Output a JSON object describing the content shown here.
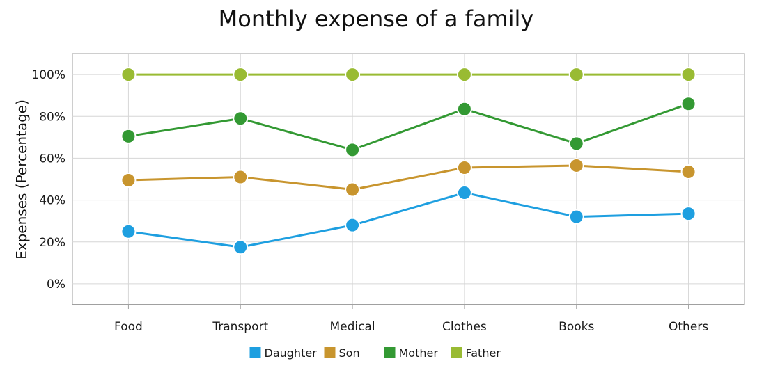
{
  "chart_data": {
    "type": "line",
    "title": "Monthly expense of a family",
    "xlabel": "",
    "ylabel": "Expenses (Percentage)",
    "categories": [
      "Food",
      "Transport",
      "Medical",
      "Clothes",
      "Books",
      "Others"
    ],
    "ylim": [
      -10,
      110
    ],
    "yticks": [
      0,
      20,
      40,
      60,
      80,
      100
    ],
    "ytick_suffix": "%",
    "grid": true,
    "legend": "bottom",
    "series": [
      {
        "name": "Daughter",
        "color": "#1e9fe0",
        "values": [
          25,
          17.5,
          28,
          43.5,
          32,
          33.5
        ]
      },
      {
        "name": "Son",
        "color": "#c8952e",
        "values": [
          49.5,
          51,
          45,
          55.5,
          56.5,
          53.5
        ]
      },
      {
        "name": "Mother",
        "color": "#339933",
        "values": [
          70.5,
          79,
          64,
          83.5,
          67,
          86
        ]
      },
      {
        "name": "Father",
        "color": "#99bb33",
        "values": [
          100,
          100,
          100,
          100,
          100,
          100
        ]
      }
    ]
  }
}
